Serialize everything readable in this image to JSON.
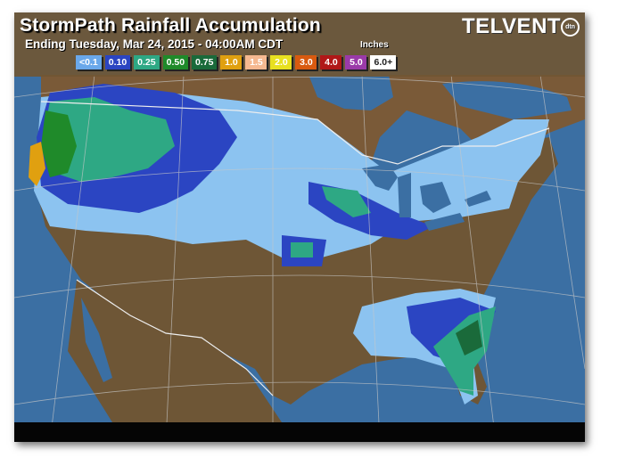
{
  "header": {
    "title": "StormPath Rainfall Accumulation",
    "subtitle": "Ending Tuesday, Mar 24, 2015 - 04:00AM CDT",
    "units": "Inches",
    "logo_text": "TELVENT",
    "logo_badge": "dtn"
  },
  "legend": [
    {
      "label": "<0.1",
      "color": "#6aa8ea",
      "text": "#fff"
    },
    {
      "label": "0.10",
      "color": "#2b45c2",
      "text": "#fff"
    },
    {
      "label": "0.25",
      "color": "#2ea884",
      "text": "#fff"
    },
    {
      "label": "0.50",
      "color": "#1f8a2a",
      "text": "#fff"
    },
    {
      "label": "0.75",
      "color": "#1a6a3a",
      "text": "#fff"
    },
    {
      "label": "1.0",
      "color": "#e0a010",
      "text": "#fff"
    },
    {
      "label": "1.5",
      "color": "#f5b890",
      "text": "#fff"
    },
    {
      "label": "2.0",
      "color": "#e8e020",
      "text": "#fff"
    },
    {
      "label": "3.0",
      "color": "#d85a10",
      "text": "#fff"
    },
    {
      "label": "4.0",
      "color": "#b01818",
      "text": "#fff"
    },
    {
      "label": "5.0",
      "color": "#9a3aa8",
      "text": "#fff"
    },
    {
      "label": "6.0+",
      "color": "#ffffff",
      "text": "#222"
    }
  ],
  "colors": {
    "ocean": "#3b6fa3",
    "land_dry": "#6e5636",
    "canada_land": "#7a5a38"
  }
}
